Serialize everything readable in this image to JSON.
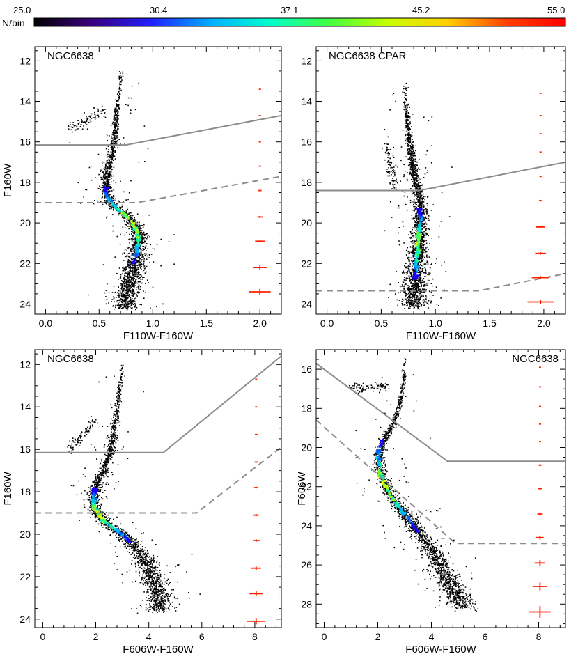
{
  "colorbar": {
    "label": "N/bin",
    "ticks": [
      "25.0",
      "30.4",
      "37.1",
      "45.2",
      "55.0"
    ],
    "colors": [
      "#000000",
      "#3a0080",
      "#2020ff",
      "#00b0ff",
      "#00ffcc",
      "#40ff40",
      "#c8ff00",
      "#ffd000",
      "#ff4000",
      "#ff0000"
    ]
  },
  "chart_data": [
    {
      "type": "scatter",
      "panel": "top-left",
      "title": "NGC6638",
      "title_position": "top-left",
      "xlabel": "F110W-F160W",
      "ylabel": "F160W",
      "xlim": [
        -0.1,
        2.2
      ],
      "ylim": [
        24.5,
        11.3
      ],
      "xticks": [
        0.0,
        0.5,
        1.0,
        1.5,
        2.0
      ],
      "yticks": [
        12,
        14,
        16,
        18,
        20,
        22,
        24
      ],
      "tick_decimals": 1,
      "ridge": [
        [
          0.7,
          12.3
        ],
        [
          0.68,
          13.5
        ],
        [
          0.66,
          14.5
        ],
        [
          0.64,
          15.5
        ],
        [
          0.62,
          16.5
        ],
        [
          0.58,
          17.3
        ],
        [
          0.56,
          17.8
        ],
        [
          0.56,
          18.5
        ],
        [
          0.6,
          19.0
        ],
        [
          0.7,
          19.4
        ],
        [
          0.8,
          19.9
        ],
        [
          0.86,
          20.5
        ],
        [
          0.86,
          21.0
        ],
        [
          0.84,
          21.7
        ],
        [
          0.8,
          22.5
        ],
        [
          0.76,
          23.3
        ],
        [
          0.74,
          24.2
        ]
      ],
      "branches": [
        {
          "from": [
            0.2,
            15.4
          ],
          "to": [
            0.55,
            14.4
          ]
        }
      ],
      "dense_range": [
        18.2,
        22.0
      ],
      "solid_line": [
        [
          -0.1,
          16.15
        ],
        [
          0.75,
          16.15
        ],
        [
          2.2,
          14.7
        ]
      ],
      "dashed_line": [
        [
          -0.1,
          19.0
        ],
        [
          0.85,
          19.0
        ],
        [
          2.2,
          17.7
        ]
      ],
      "error_bars": {
        "x": 2.0,
        "mags": [
          13.4,
          14.7,
          16.0,
          17.2,
          18.4,
          19.7,
          20.9,
          22.2,
          23.4
        ],
        "xerr": [
          0.005,
          0.006,
          0.008,
          0.01,
          0.015,
          0.025,
          0.045,
          0.065,
          0.1
        ],
        "yerr": [
          0.02,
          0.02,
          0.03,
          0.03,
          0.04,
          0.05,
          0.06,
          0.1,
          0.15
        ]
      }
    },
    {
      "type": "scatter",
      "panel": "top-right",
      "title": "NGC6638 CPAR",
      "title_position": "top-left",
      "xlabel": "F110W-F160W",
      "ylabel": "",
      "xlim": [
        -0.1,
        2.2
      ],
      "ylim": [
        24.5,
        11.3
      ],
      "xticks": [
        0.0,
        0.5,
        1.0,
        1.5,
        2.0
      ],
      "yticks": [
        12,
        14,
        16,
        18,
        20,
        22,
        24
      ],
      "tick_decimals": 1,
      "ridge": [
        [
          0.72,
          12.7
        ],
        [
          0.72,
          13.8
        ],
        [
          0.74,
          15.0
        ],
        [
          0.76,
          16.2
        ],
        [
          0.8,
          17.4
        ],
        [
          0.84,
          18.6
        ],
        [
          0.86,
          19.8
        ],
        [
          0.84,
          21.0
        ],
        [
          0.82,
          22.2
        ],
        [
          0.8,
          23.2
        ],
        [
          0.8,
          24.1
        ]
      ],
      "branches": [
        {
          "from": [
            0.55,
            16.2
          ],
          "to": [
            0.62,
            18.3
          ]
        }
      ],
      "dense_range": [
        19.3,
        22.8
      ],
      "solid_line": [
        [
          -0.1,
          18.4
        ],
        [
          0.85,
          18.4
        ],
        [
          2.2,
          17.0
        ]
      ],
      "dashed_line": [
        [
          -0.1,
          23.35
        ],
        [
          1.4,
          23.35
        ],
        [
          2.2,
          22.5
        ]
      ],
      "error_bars": {
        "x": 1.97,
        "mags": [
          13.6,
          14.7,
          15.6,
          16.5,
          17.7,
          18.9,
          20.2,
          21.5,
          22.7,
          23.9
        ],
        "xerr": [
          0.005,
          0.005,
          0.006,
          0.008,
          0.01,
          0.015,
          0.04,
          0.05,
          0.08,
          0.12
        ],
        "yerr": [
          0.02,
          0.02,
          0.02,
          0.03,
          0.03,
          0.04,
          0.05,
          0.06,
          0.08,
          0.12
        ]
      }
    },
    {
      "type": "scatter",
      "panel": "bottom-left",
      "title": "NGC6638",
      "title_position": "top-left",
      "xlabel": "F606W-F160W",
      "ylabel": "F160W",
      "xlim": [
        -0.3,
        9.0
      ],
      "ylim": [
        24.4,
        11.3
      ],
      "xticks": [
        0,
        2,
        4,
        6,
        8
      ],
      "yticks": [
        12,
        14,
        16,
        18,
        20,
        22,
        24
      ],
      "tick_decimals": 0,
      "ridge": [
        [
          3.0,
          11.8
        ],
        [
          2.9,
          13.0
        ],
        [
          2.75,
          14.5
        ],
        [
          2.55,
          16.0
        ],
        [
          2.25,
          17.0
        ],
        [
          1.95,
          17.8
        ],
        [
          1.9,
          18.6
        ],
        [
          2.3,
          19.4
        ],
        [
          3.0,
          20.0
        ],
        [
          3.6,
          20.8
        ],
        [
          4.0,
          21.6
        ],
        [
          4.3,
          22.6
        ],
        [
          4.4,
          23.6
        ]
      ],
      "branches": [
        {
          "from": [
            1.0,
            16.0
          ],
          "to": [
            2.0,
            14.5
          ]
        }
      ],
      "dense_range": [
        17.8,
        20.4
      ],
      "solid_line": [
        [
          -0.3,
          16.15
        ],
        [
          4.55,
          16.15
        ],
        [
          9.0,
          11.6
        ]
      ],
      "dashed_line": [
        [
          -0.3,
          19.0
        ],
        [
          5.8,
          19.0
        ],
        [
          9.0,
          15.9
        ]
      ],
      "error_bars": {
        "x": 8.05,
        "mags": [
          12.7,
          14.0,
          15.3,
          16.6,
          17.8,
          19.1,
          20.3,
          21.6,
          22.8,
          24.1
        ],
        "xerr": [
          0.03,
          0.04,
          0.05,
          0.06,
          0.08,
          0.1,
          0.13,
          0.18,
          0.25,
          0.35
        ],
        "yerr": [
          0.02,
          0.02,
          0.03,
          0.03,
          0.04,
          0.05,
          0.06,
          0.08,
          0.12,
          0.15
        ]
      }
    },
    {
      "type": "scatter",
      "panel": "bottom-right",
      "title": "NGC6638",
      "title_position": "top-right",
      "xlabel": "F606W-F160W",
      "ylabel": "F606W",
      "xlim": [
        -0.3,
        9.0
      ],
      "ylim": [
        29.2,
        15.0
      ],
      "xticks": [
        0,
        2,
        4,
        6,
        8
      ],
      "yticks": [
        16,
        18,
        20,
        22,
        24,
        26,
        28
      ],
      "tick_decimals": 0,
      "ridge": [
        [
          3.0,
          15.3
        ],
        [
          2.95,
          16.5
        ],
        [
          2.8,
          17.8
        ],
        [
          2.55,
          18.8
        ],
        [
          2.2,
          19.6
        ],
        [
          2.0,
          20.3
        ],
        [
          2.1,
          21.5
        ],
        [
          2.5,
          22.5
        ],
        [
          3.1,
          23.6
        ],
        [
          3.8,
          24.8
        ],
        [
          4.3,
          26.0
        ],
        [
          4.8,
          27.2
        ],
        [
          5.2,
          28.2
        ]
      ],
      "branches": [
        {
          "from": [
            1.0,
            17.0
          ],
          "to": [
            2.4,
            16.8
          ]
        }
      ],
      "dense_range": [
        19.6,
        24.3
      ],
      "solid_line": [
        [
          -0.3,
          15.7
        ],
        [
          4.6,
          20.7
        ],
        [
          9.0,
          20.7
        ]
      ],
      "dashed_line": [
        [
          -0.3,
          18.6
        ],
        [
          4.9,
          24.9
        ],
        [
          9.0,
          24.9
        ]
      ],
      "error_bars": {
        "x": 8.05,
        "mags": [
          15.9,
          16.9,
          17.9,
          18.8,
          19.7,
          20.9,
          22.1,
          23.4,
          24.6,
          25.9,
          27.1,
          28.4
        ],
        "xerr": [
          0.02,
          0.02,
          0.03,
          0.03,
          0.04,
          0.05,
          0.07,
          0.1,
          0.14,
          0.2,
          0.28,
          0.4
        ],
        "yerr": [
          0.02,
          0.02,
          0.03,
          0.03,
          0.04,
          0.05,
          0.06,
          0.08,
          0.1,
          0.15,
          0.2,
          0.3
        ]
      }
    }
  ]
}
